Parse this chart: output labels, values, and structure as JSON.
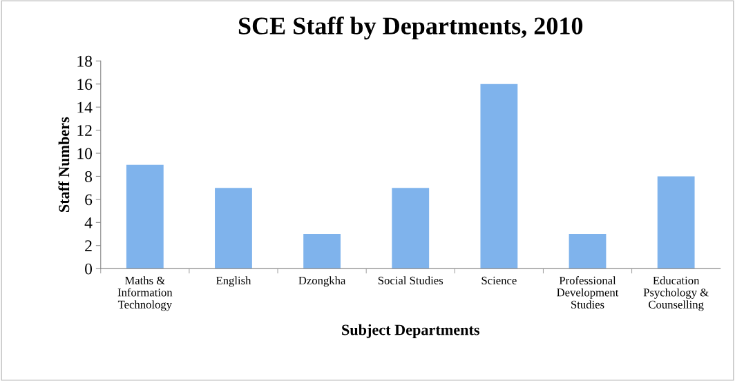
{
  "chart_data": {
    "type": "bar",
    "title": "SCE Staff by Departments, 2010",
    "xlabel": "Subject Departments",
    "ylabel": "Staff Numbers",
    "categories": [
      "Maths & Information Technology",
      "English",
      "Dzongkha",
      "Social Studies",
      "Science",
      "Professional Development Studies",
      "Education Psychology & Counselling"
    ],
    "values": [
      9,
      7,
      3,
      7,
      16,
      3,
      8
    ],
    "color": "#7fb3ec",
    "ylim": [
      0,
      18
    ],
    "yticks": [
      0,
      2,
      4,
      6,
      8,
      10,
      12,
      14,
      16,
      18
    ],
    "grid": false,
    "legend": false
  }
}
